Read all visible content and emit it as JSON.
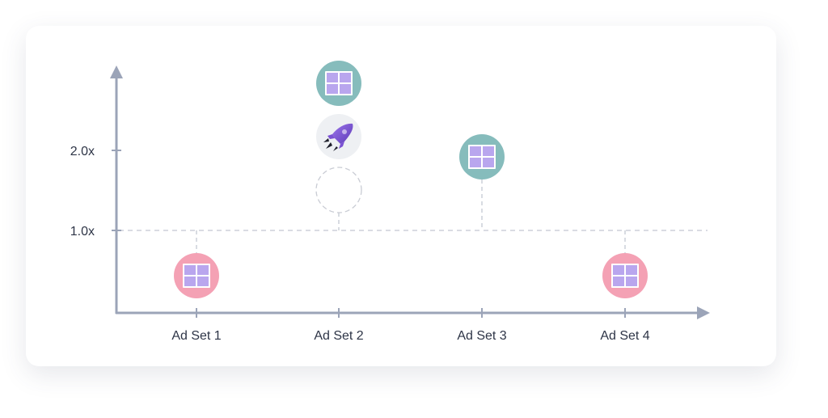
{
  "y_ticks": [
    "2.0x",
    "1.0x"
  ],
  "categories": [
    "Ad Set 1",
    "Ad Set 2",
    "Ad Set 3",
    "Ad Set 4"
  ],
  "markers": [
    {
      "category": "Ad Set 1",
      "level": 0.5,
      "kind": "grid-icon",
      "color": "#f4a1b4"
    },
    {
      "category": "Ad Set 2",
      "level": 2.8,
      "kind": "grid-icon",
      "color": "#86bcbc"
    },
    {
      "category": "Ad Set 2",
      "level": 2.2,
      "kind": "rocket-icon",
      "color": "#eef0f3"
    },
    {
      "category": "Ad Set 2",
      "level": 1.3,
      "kind": "empty-dashed-circle",
      "color": "#c9ccd4"
    },
    {
      "category": "Ad Set 3",
      "level": 1.9,
      "kind": "grid-icon",
      "color": "#86bcbc"
    },
    {
      "category": "Ad Set 4",
      "level": 0.5,
      "kind": "grid-icon",
      "color": "#f4a1b4"
    }
  ],
  "colors": {
    "axis": "#9ba4b8",
    "dashed": "#c4c8d2",
    "teal": "#86bcbc",
    "pink": "#f4a1b4",
    "tile": "#b9a6ee",
    "rocket": "#7b52d3"
  }
}
